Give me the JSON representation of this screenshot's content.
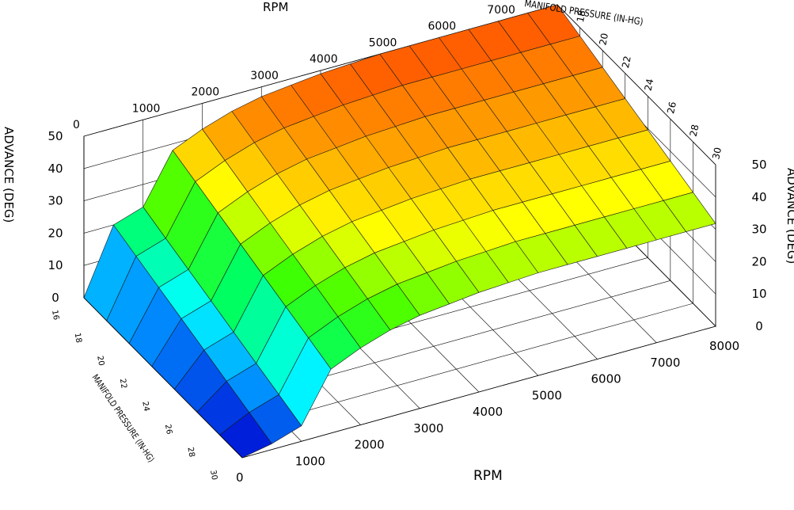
{
  "chart_data": {
    "type": "surface3d",
    "x_axis": {
      "label": "RPM",
      "ticks": [
        "0",
        "1000",
        "2000",
        "3000",
        "4000",
        "5000",
        "6000",
        "7000",
        "8000"
      ],
      "range": [
        0,
        8000
      ]
    },
    "y_axis": {
      "label": "MANIFOLD PRESSURE (IN-HG)",
      "ticks": [
        "16",
        "18",
        "20",
        "22",
        "24",
        "26",
        "28",
        "30"
      ],
      "range": [
        16,
        30
      ]
    },
    "z_axis": {
      "label": "ADVANCE (DEG)",
      "ticks": [
        "0",
        "10",
        "20",
        "30",
        "40",
        "50"
      ],
      "range": [
        0,
        50
      ]
    },
    "rpm": [
      0,
      500,
      1000,
      1500,
      2000,
      2500,
      3000,
      3500,
      4000,
      4500,
      5000,
      5500,
      6000,
      6500,
      7000,
      7500,
      8000
    ],
    "map": [
      16,
      18,
      20,
      22,
      24,
      26,
      28,
      30
    ],
    "advance_at_map16": [
      0,
      20,
      23,
      38,
      42,
      45,
      47,
      48,
      49,
      49.5,
      50,
      50,
      50,
      50,
      50,
      50,
      50
    ],
    "map_reduction_deg_per_inhg": 1.3,
    "colormap": [
      "#0000d0",
      "#0090ff",
      "#00ffff",
      "#00ff60",
      "#40ff00",
      "#ffff00",
      "#ffa000",
      "#ff5000"
    ]
  }
}
